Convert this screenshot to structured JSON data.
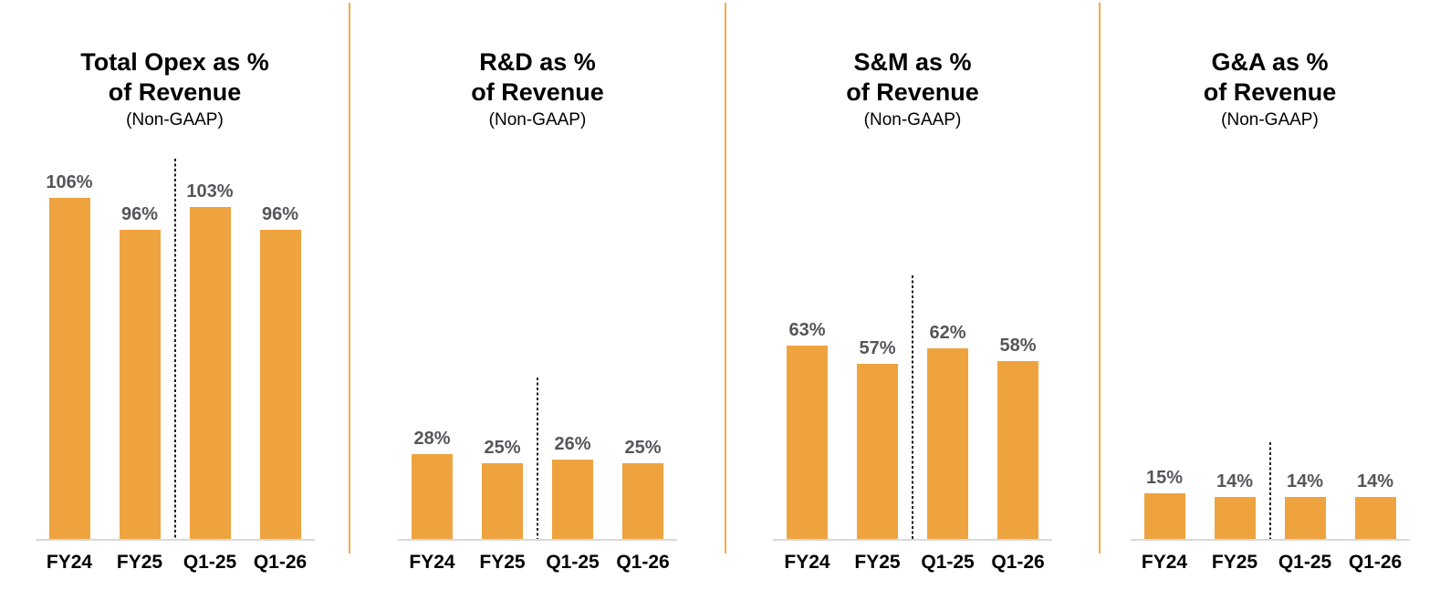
{
  "styles": {
    "bar_color": "#EEA33F",
    "panel_divider_color": "#F4AA41",
    "value_label_color": "#55565A",
    "baseline_color": "#D9D9D9",
    "dotted_separator_color": "#1A1A1A",
    "text_color": "#000000",
    "background_color": "#FFFFFF"
  },
  "chart_data": [
    {
      "type": "bar",
      "title": "Total Opex as % of Revenue",
      "title_line1": "Total Opex as %",
      "title_line2": "of Revenue",
      "subtitle": "(Non-GAAP)",
      "categories": [
        "FY24",
        "FY25",
        "Q1-25",
        "Q1-26"
      ],
      "values": [
        106,
        96,
        103,
        96
      ],
      "labels": [
        "106%",
        "96%",
        "103%",
        "96%"
      ],
      "ylim": [
        0,
        120
      ],
      "grid": false,
      "legend": "none",
      "xlabel": "",
      "ylabel": "",
      "separator": {
        "between": [
          "FY25",
          "Q1-25"
        ],
        "style": "dotted",
        "top_value": 118
      }
    },
    {
      "type": "bar",
      "title": "R&D as % of Revenue",
      "title_line1": "R&D as %",
      "title_line2": "of Revenue",
      "subtitle": "(Non-GAAP)",
      "categories": [
        "FY24",
        "FY25",
        "Q1-25",
        "Q1-26"
      ],
      "values": [
        28,
        25,
        26,
        25
      ],
      "labels": [
        "28%",
        "25%",
        "26%",
        "25%"
      ],
      "ylim": [
        0,
        127
      ],
      "grid": false,
      "legend": "none",
      "xlabel": "",
      "ylabel": "",
      "separator": {
        "between": [
          "FY25",
          "Q1-25"
        ],
        "style": "dotted",
        "top_value": 53
      }
    },
    {
      "type": "bar",
      "title": "S&M as % of Revenue",
      "title_line1": "S&M as %",
      "title_line2": "of Revenue",
      "subtitle": "(Non-GAAP)",
      "categories": [
        "FY24",
        "FY25",
        "Q1-25",
        "Q1-26"
      ],
      "values": [
        63,
        57,
        62,
        58
      ],
      "labels": [
        "63%",
        "57%",
        "62%",
        "58%"
      ],
      "ylim": [
        0,
        126
      ],
      "grid": false,
      "legend": "none",
      "xlabel": "",
      "ylabel": "",
      "separator": {
        "between": [
          "FY25",
          "Q1-25"
        ],
        "style": "dotted",
        "top_value": 86
      }
    },
    {
      "type": "bar",
      "title": "G&A as % of Revenue",
      "title_line1": "G&A as %",
      "title_line2": "of Revenue",
      "subtitle": "(Non-GAAP)",
      "categories": [
        "FY24",
        "FY25",
        "Q1-25",
        "Q1-26"
      ],
      "values": [
        15,
        14,
        14,
        14
      ],
      "labels": [
        "15%",
        "14%",
        "14%",
        "14%"
      ],
      "ylim": [
        0,
        128
      ],
      "grid": false,
      "legend": "none",
      "xlabel": "",
      "ylabel": "",
      "separator": {
        "between": [
          "FY25",
          "Q1-25"
        ],
        "style": "dotted",
        "top_value": 32
      }
    }
  ]
}
